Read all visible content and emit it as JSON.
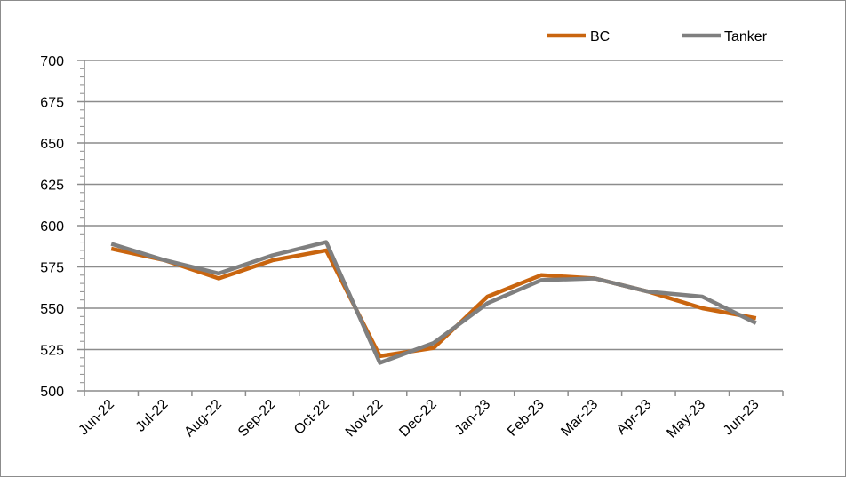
{
  "chart_data": {
    "type": "line",
    "categories": [
      "Jun-22",
      "Jul-22",
      "Aug-22",
      "Sep-22",
      "Oct-22",
      "Nov-22",
      "Dec-22",
      "Jan-23",
      "Feb-23",
      "Mar-23",
      "Apr-23",
      "May-23",
      "Jun-23"
    ],
    "series": [
      {
        "name": "BC",
        "color": "#c9650f",
        "values": [
          586,
          579,
          568,
          579,
          585,
          521,
          526,
          557,
          570,
          568,
          560,
          550,
          544
        ]
      },
      {
        "name": "Tanker",
        "color": "#7f7f7f",
        "values": [
          589,
          579,
          571,
          582,
          590,
          517,
          529,
          553,
          567,
          568,
          560,
          557,
          541
        ]
      }
    ],
    "ylim": [
      500,
      700
    ],
    "yticks": [
      500,
      525,
      550,
      575,
      600,
      625,
      650,
      675,
      700
    ],
    "ytick_labels": [
      "500",
      "525",
      "550",
      "575",
      "600",
      "625",
      "650",
      "675",
      "700"
    ],
    "grid": true,
    "legend_position": "top-right",
    "title": "",
    "xlabel": "",
    "ylabel": ""
  }
}
